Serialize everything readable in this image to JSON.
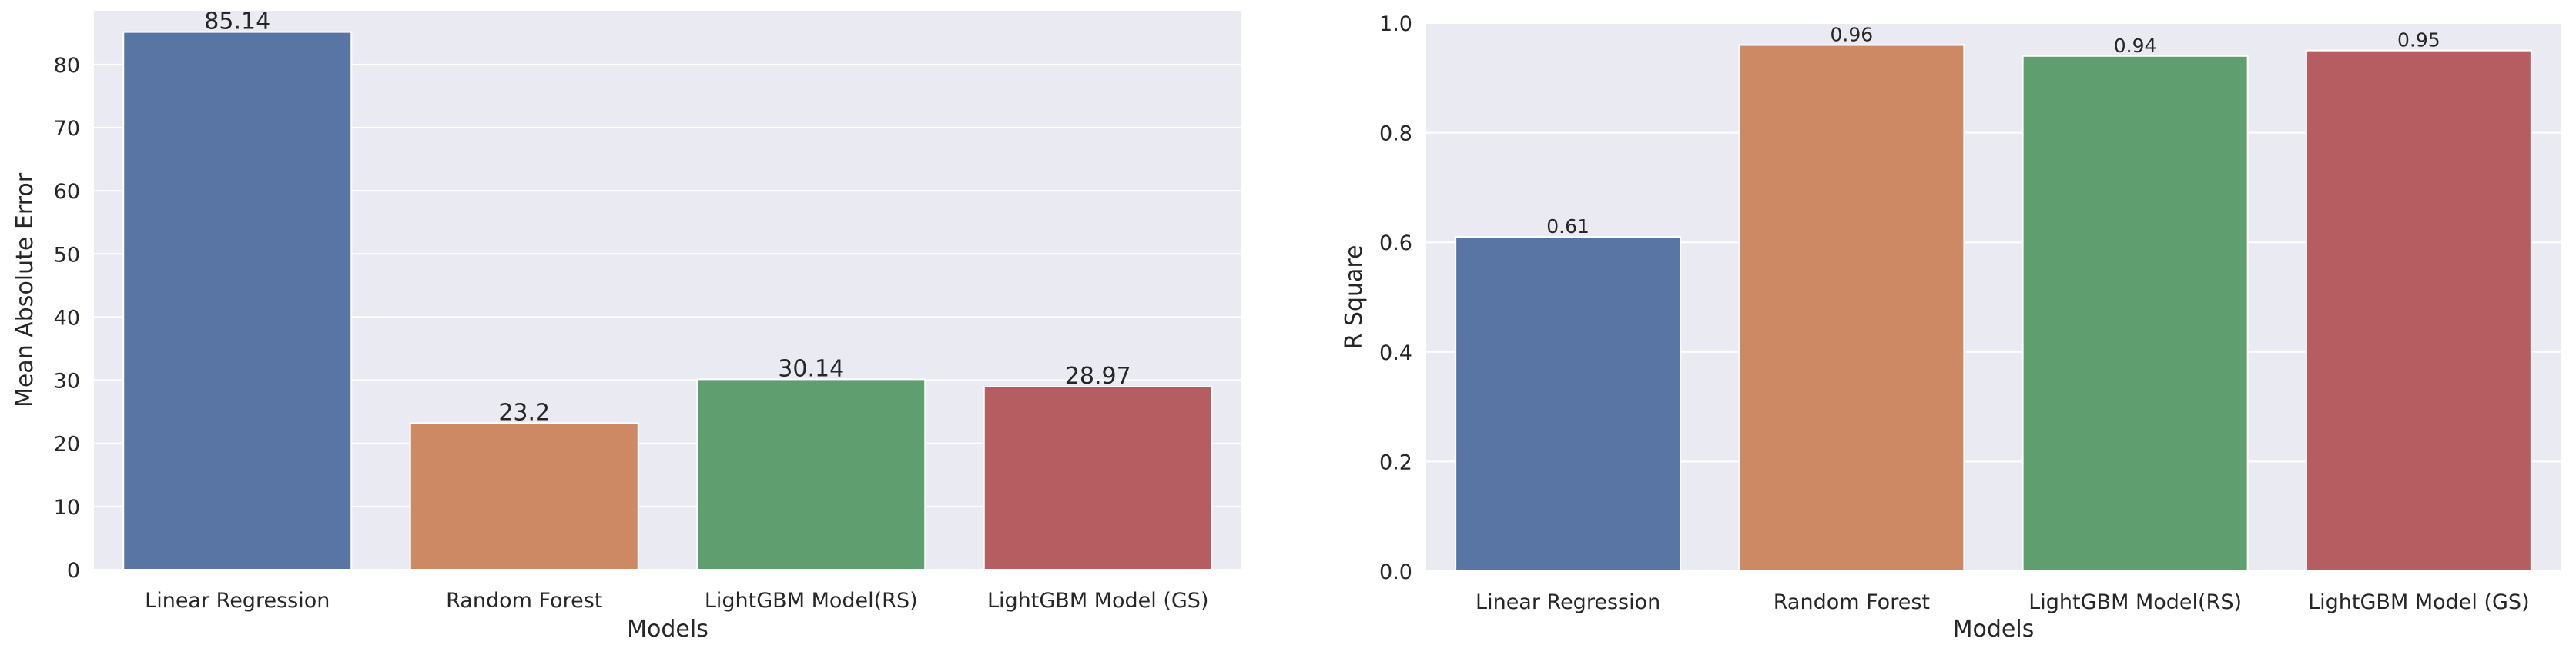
{
  "chart_data": [
    {
      "type": "bar",
      "categories": [
        "Linear Regression",
        "Random Forest",
        "LightGBM Model(RS)",
        "LightGBM Model (GS)"
      ],
      "values": [
        85.14,
        23.2,
        30.14,
        28.97
      ],
      "value_labels": [
        "85.14",
        "23.2",
        "30.14",
        "28.97"
      ],
      "xlabel": "Models",
      "ylabel": "Mean Absolute Error",
      "ylim": [
        0,
        88.5
      ],
      "yticks": [
        0,
        10,
        20,
        30,
        40,
        50,
        60,
        70,
        80
      ],
      "ytick_labels": [
        "0",
        "10",
        "20",
        "30",
        "40",
        "50",
        "60",
        "70",
        "80"
      ],
      "colors": [
        "#5975a4",
        "#cc8963",
        "#5f9e6e",
        "#b55d60"
      ],
      "background": "#eaeaf2",
      "grid": true
    },
    {
      "type": "bar",
      "categories": [
        "Linear Regression",
        "Random Forest",
        "LightGBM Model(RS)",
        "LightGBM Model (GS)"
      ],
      "values": [
        0.61,
        0.96,
        0.94,
        0.95
      ],
      "value_labels": [
        "0.61",
        "0.96",
        "0.94",
        "0.95"
      ],
      "xlabel": "Models",
      "ylabel": "R Square",
      "ylim": [
        0,
        1.0
      ],
      "yticks": [
        0,
        0.2,
        0.4,
        0.6,
        0.8,
        1.0
      ],
      "ytick_labels": [
        "0.0",
        "0.2",
        "0.4",
        "0.6",
        "0.8",
        "1.0"
      ],
      "colors": [
        "#5975a4",
        "#cc8963",
        "#5f9e6e",
        "#b55d60"
      ],
      "background": "#eaeaf2",
      "grid": true
    }
  ]
}
